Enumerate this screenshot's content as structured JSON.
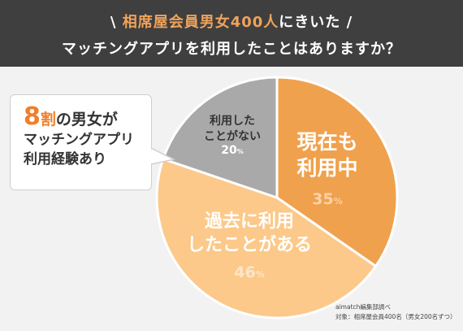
{
  "header": {
    "slash_left": "\\",
    "title_accent": "相席屋会員男女400人",
    "title_rest": "にきいた",
    "slash_right": "/",
    "subtitle": "マッチングアプリを利用したことはありますか？"
  },
  "callout": {
    "number": "8",
    "unit": "割",
    "rest": "の男女が",
    "line2": "マッチングアプリ",
    "line3": "利用経験あり"
  },
  "chart_data": {
    "type": "pie",
    "slices": [
      {
        "label_lines": [
          "現在も",
          "利用中"
        ],
        "value": 35,
        "display": "35",
        "color": "#f0a14d",
        "text_color": "#ffffff",
        "pct_color": "#fbd3a7"
      },
      {
        "label_lines": [
          "過去に利用",
          "したことがある"
        ],
        "value": 46,
        "display": "46",
        "color": "#fcc98a",
        "text_color": "#ffffff",
        "pct_color": "#fde6c8"
      },
      {
        "label_lines": [
          "利用した",
          "ことがない"
        ],
        "value": 20,
        "display": "20",
        "color": "#a9a9a9",
        "text_color": "#333333",
        "pct_color": "#ffffff"
      }
    ],
    "unit": "%"
  },
  "source": {
    "line1": "aimatch編集部調べ",
    "line2": "対象：相席屋会員400名（男女200名ずつ）"
  }
}
